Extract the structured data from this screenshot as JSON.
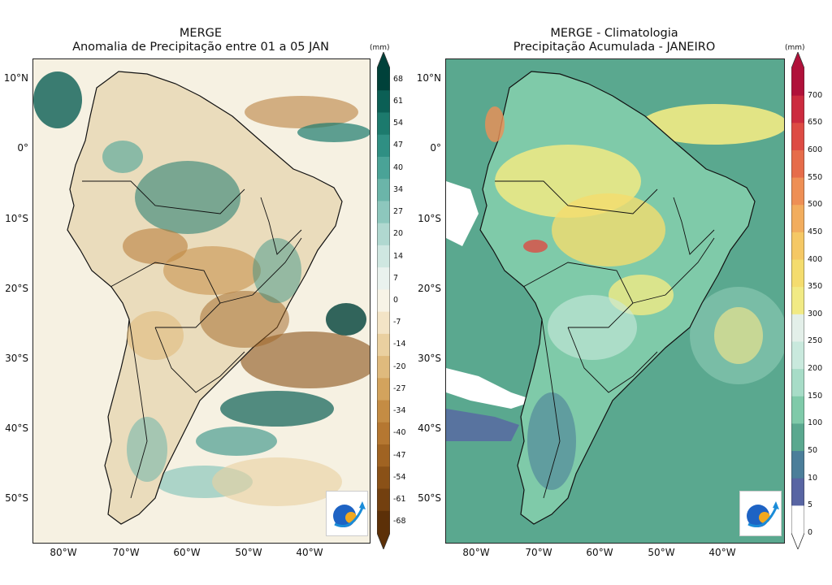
{
  "left": {
    "title_line1": "MERGE",
    "title_line2": "Anomalia de Precipitação entre 01 a 05 JAN",
    "unit": "(mm)",
    "lat_labels": [
      "10°N",
      "0°",
      "10°S",
      "20°S",
      "30°S",
      "40°S",
      "50°S"
    ],
    "lon_labels": [
      "80°W",
      "70°W",
      "60°W",
      "50°W",
      "40°W"
    ],
    "colorbar_ticks": [
      "68",
      "61",
      "54",
      "47",
      "40",
      "34",
      "27",
      "20",
      "14",
      "7",
      "0",
      "-7",
      "-14",
      "-20",
      "-27",
      "-34",
      "-40",
      "-47",
      "-54",
      "-61",
      "-68"
    ],
    "colorbar_colors": [
      "#00413a",
      "#0b5f55",
      "#1c7a6d",
      "#2f8f83",
      "#4aa397",
      "#6bb5a9",
      "#8dc7bd",
      "#b0d8d0",
      "#cfe7e1",
      "#e9f2ee",
      "#f7f3e6",
      "#f3e4c6",
      "#ead0a0",
      "#dfba7d",
      "#d3a35d",
      "#c48c44",
      "#b57731",
      "#a06322",
      "#8a5117",
      "#73400f",
      "#5c3008"
    ],
    "logo_text": "INPE"
  },
  "right": {
    "title_line1": "MERGE - Climatologia",
    "title_line2": "Precipitação Acumulada - JANEIRO",
    "unit": "(mm)",
    "lat_labels": [
      "10°N",
      "0°",
      "10°S",
      "20°S",
      "30°S",
      "40°S",
      "50°S"
    ],
    "lon_labels": [
      "80°W",
      "70°W",
      "60°W",
      "50°W",
      "40°W"
    ],
    "colorbar_ticks": [
      "700",
      "650",
      "600",
      "550",
      "500",
      "450",
      "400",
      "350",
      "300",
      "250",
      "200",
      "150",
      "100",
      "50",
      "10",
      "5",
      "0"
    ],
    "colorbar_colors": [
      "#b0113a",
      "#cc2b3f",
      "#dd4b44",
      "#e66c4a",
      "#ee8f55",
      "#f2ad5e",
      "#f5c865",
      "#f4dc6e",
      "#f1ea84",
      "#e3efe9",
      "#c9e9dd",
      "#a7dcc7",
      "#7fcaa9",
      "#5aa88f",
      "#4b7e9a",
      "#5865a3",
      "#ffffff"
    ],
    "logo_text": "INPE"
  }
}
